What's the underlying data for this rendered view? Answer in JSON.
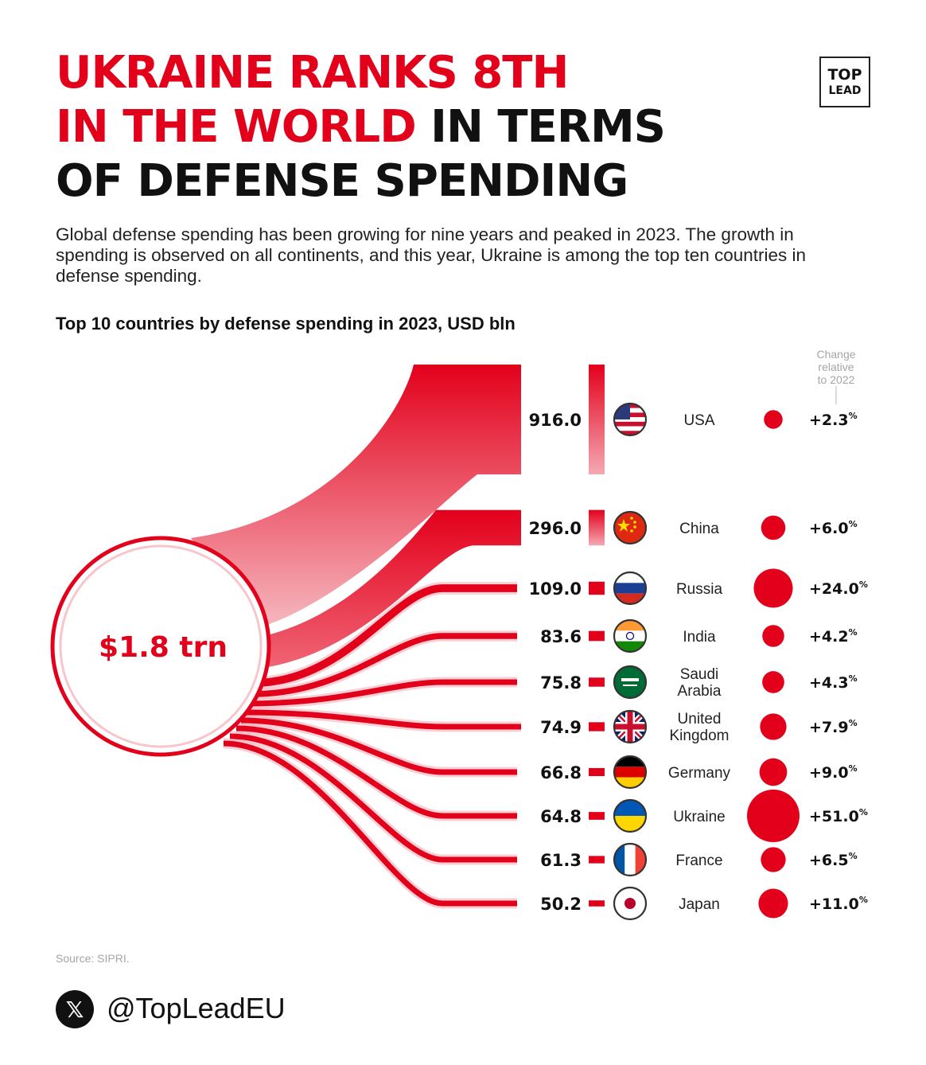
{
  "header": {
    "title_red": "UKRAINE RANKS 8TH",
    "title_red2": "IN THE WORLD",
    "title_black2": " IN TERMS",
    "title_black3": "OF DEFENSE SPENDING",
    "logo_top": "TOP",
    "logo_bottom": "LEAD",
    "subtitle": "Global defense spending has been growing for nine years and peaked in 2023. The growth in spending is observed on all continents, and this year, Ukraine is among the top ten countries in defense spending."
  },
  "chart_data": {
    "type": "bar",
    "title": "Top 10 countries by defense spending in 2023, USD bln",
    "total_label": "$1.8 trn",
    "change_header": [
      "Change",
      "relative",
      "to 2022"
    ],
    "categories": [
      "USA",
      "China",
      "Russia",
      "India",
      "Saudi Arabia",
      "United Kingdom",
      "Germany",
      "Ukraine",
      "France",
      "Japan"
    ],
    "value_labels": [
      "916.0",
      "296.0",
      "109.0",
      "83.6",
      "75.8",
      "74.9",
      "66.8",
      "64.8",
      "61.3",
      "50.2"
    ],
    "values": [
      916.0,
      296.0,
      109.0,
      83.6,
      75.8,
      74.9,
      66.8,
      64.8,
      61.3,
      50.2
    ],
    "change_labels": [
      "+2.3",
      "+6.0",
      "+24.0",
      "+4.2",
      "+4.3",
      "+7.9",
      "+9.0",
      "+51.0",
      "+6.5",
      "+11.0"
    ],
    "change_values": [
      2.3,
      6.0,
      24.0,
      4.2,
      4.3,
      7.9,
      9.0,
      51.0,
      6.5,
      11.0
    ],
    "change_unit": "%",
    "flag_icons": [
      "usa-flag-icon",
      "china-flag-icon",
      "russia-flag-icon",
      "india-flag-icon",
      "saudi-arabia-flag-icon",
      "uk-flag-icon",
      "germany-flag-icon",
      "ukraine-flag-icon",
      "france-flag-icon",
      "japan-flag-icon"
    ],
    "colors": {
      "accent": "#e3001b",
      "light": "#f8c9cf"
    }
  },
  "footer": {
    "source": "Source: SIPRI.",
    "x_icon": "x-logo-icon",
    "x_glyph": "𝕏",
    "handle": "@TopLeadEU"
  }
}
